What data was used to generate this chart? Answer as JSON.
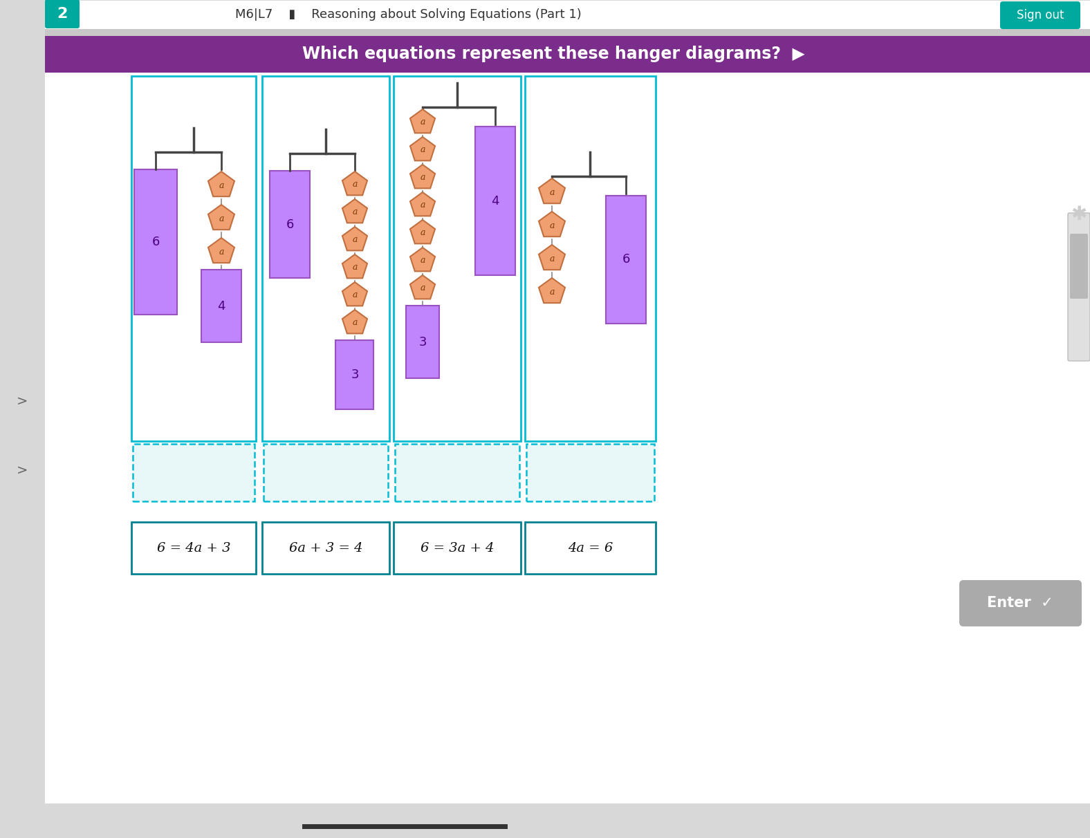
{
  "bg_color": "#f0f0f0",
  "header_bg": "#ffffff",
  "signout_color": "#00a99d",
  "purple_banner_color": "#7b2d8b",
  "banner_text": "Which equations represent these hanger diagrams?",
  "card_border_color": "#00bcd4",
  "card_bg": "#ffffff",
  "drop_zone_bg": "#e8f8f8",
  "drop_zone_border": "#00bcd4",
  "hanger_bar_color": "#444444",
  "rect_color": "#c084fc",
  "rect_border_color": "#9a52c0",
  "pentagon_fill": "#f0a070",
  "pentagon_border": "#c07040",
  "equations": [
    "6 = 4a + 3",
    "6a + 3 = 4",
    "6 = 3a + 4",
    "4a = 6"
  ],
  "eq_box_border": "#00838f",
  "sidebar_color": "#d8d8d8",
  "scrollbar_color": "#b0b0b0",
  "enter_btn_color": "#aaaaaa"
}
